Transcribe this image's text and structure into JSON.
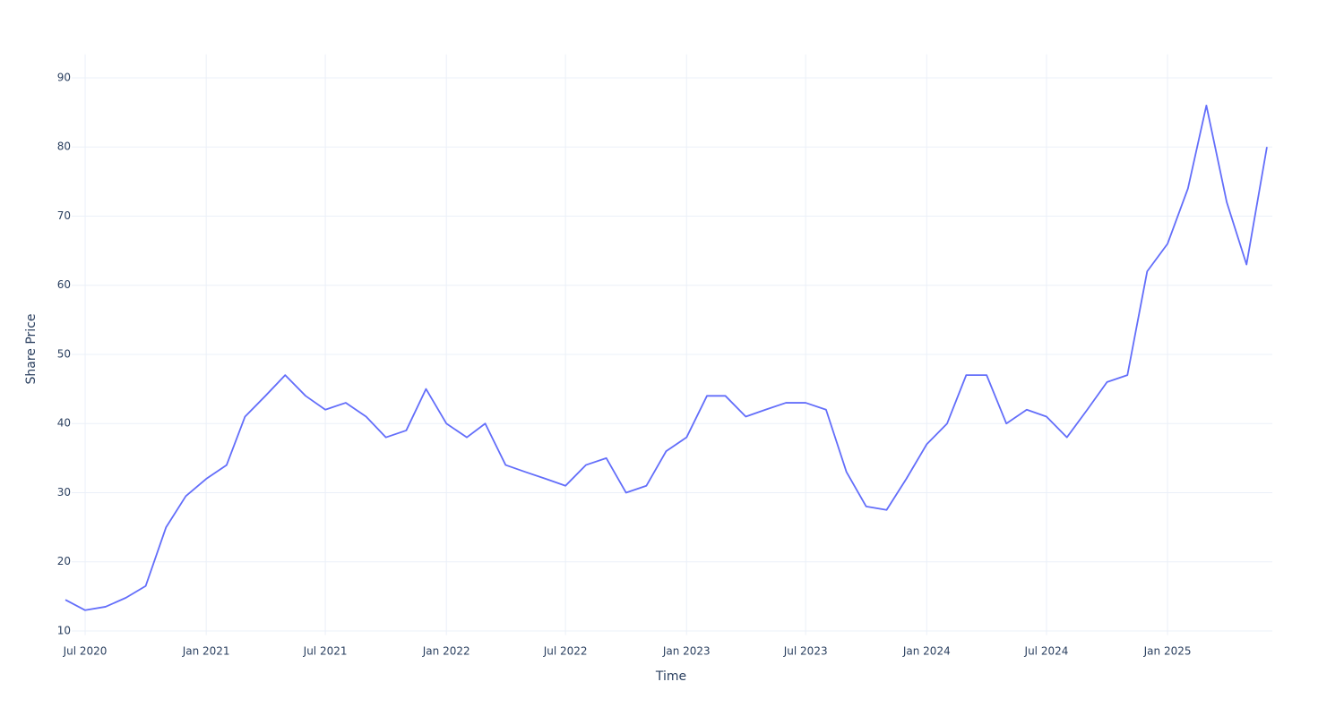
{
  "chart_data": {
    "type": "line",
    "x_label": "Time",
    "y_label": "Share Price",
    "x": [
      "2020-06",
      "2020-07",
      "2020-08",
      "2020-09",
      "2020-10",
      "2020-11",
      "2020-12",
      "2021-01",
      "2021-02",
      "2021-03",
      "2021-04",
      "2021-05",
      "2021-06",
      "2021-07",
      "2021-08",
      "2021-09",
      "2021-10",
      "2021-11",
      "2021-12",
      "2022-01",
      "2022-02",
      "2022-03",
      "2022-04",
      "2022-05",
      "2022-06",
      "2022-07",
      "2022-08",
      "2022-09",
      "2022-10",
      "2022-11",
      "2022-12",
      "2023-01",
      "2023-02",
      "2023-03",
      "2023-04",
      "2023-05",
      "2023-06",
      "2023-07",
      "2023-08",
      "2023-09",
      "2023-10",
      "2023-11",
      "2023-12",
      "2024-01",
      "2024-02",
      "2024-03",
      "2024-04",
      "2024-05",
      "2024-06",
      "2024-07",
      "2024-08",
      "2024-09",
      "2024-10",
      "2024-11",
      "2024-12",
      "2025-01",
      "2025-02",
      "2025-03",
      "2025-04",
      "2025-05",
      "2025-06"
    ],
    "series": [
      {
        "name": "Share Price",
        "color": "#636efa",
        "values": [
          14.5,
          13,
          13.5,
          14.8,
          16.5,
          25,
          29.5,
          32,
          34,
          41,
          44,
          47,
          44,
          42,
          43,
          41,
          38,
          39,
          45,
          40,
          38,
          40,
          34,
          33,
          32,
          31,
          34,
          35,
          30,
          31,
          36,
          38,
          44,
          44,
          41,
          42,
          43,
          43,
          42,
          33,
          28,
          27.5,
          32,
          37,
          40,
          47,
          47,
          40,
          42,
          41,
          38,
          42,
          46,
          47,
          62,
          66,
          74,
          86,
          72,
          63,
          80
        ]
      }
    ],
    "xlim": [
      "2020-06",
      "2025-07"
    ],
    "xticks": [
      {
        "value": "2020-07",
        "label": "Jul 2020"
      },
      {
        "value": "2021-01",
        "label": "Jan 2021"
      },
      {
        "value": "2021-07",
        "label": "Jul 2021"
      },
      {
        "value": "2022-01",
        "label": "Jan 2022"
      },
      {
        "value": "2022-07",
        "label": "Jul 2022"
      },
      {
        "value": "2023-01",
        "label": "Jan 2023"
      },
      {
        "value": "2023-07",
        "label": "Jul 2023"
      },
      {
        "value": "2024-01",
        "label": "Jan 2024"
      },
      {
        "value": "2024-07",
        "label": "Jul 2024"
      },
      {
        "value": "2025-01",
        "label": "Jan 2025"
      }
    ],
    "ylim": [
      9.4,
      93.4
    ],
    "yticks": [
      10,
      20,
      30,
      40,
      50,
      60,
      70,
      80,
      90
    ],
    "grid": true
  }
}
